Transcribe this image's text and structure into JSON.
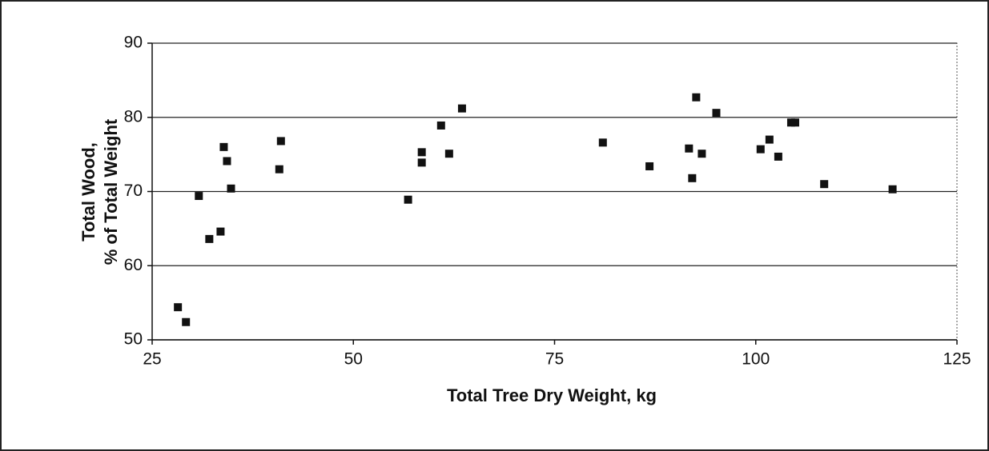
{
  "chart_data": {
    "type": "scatter",
    "xlabel": "Total Tree Dry Weight, kg",
    "ylabel": [
      "Total Wood,",
      "% of Total Weight"
    ],
    "x": [
      28.2,
      29.2,
      30.8,
      32.1,
      33.5,
      33.9,
      34.3,
      34.8,
      40.8,
      41.0,
      56.8,
      58.5,
      58.5,
      60.9,
      61.9,
      63.5,
      81.0,
      86.8,
      91.7,
      92.1,
      92.6,
      93.3,
      95.1,
      100.6,
      101.7,
      102.8,
      104.4,
      104.9,
      108.5,
      117.0
    ],
    "values": [
      54.4,
      52.4,
      69.4,
      63.6,
      64.6,
      76.0,
      74.1,
      70.4,
      73.0,
      76.8,
      68.9,
      75.3,
      73.9,
      78.9,
      75.1,
      81.2,
      76.6,
      73.4,
      75.8,
      71.8,
      82.7,
      75.1,
      80.6,
      75.7,
      77.0,
      74.7,
      79.3,
      79.3,
      71.0,
      70.3
    ],
    "color": "#111111",
    "xlim": [
      25,
      125
    ],
    "xticks": [
      25,
      50,
      75,
      100,
      125
    ],
    "ylim": [
      50,
      90
    ],
    "yticks": [
      50,
      60,
      70,
      80,
      90
    ],
    "grid": true
  }
}
